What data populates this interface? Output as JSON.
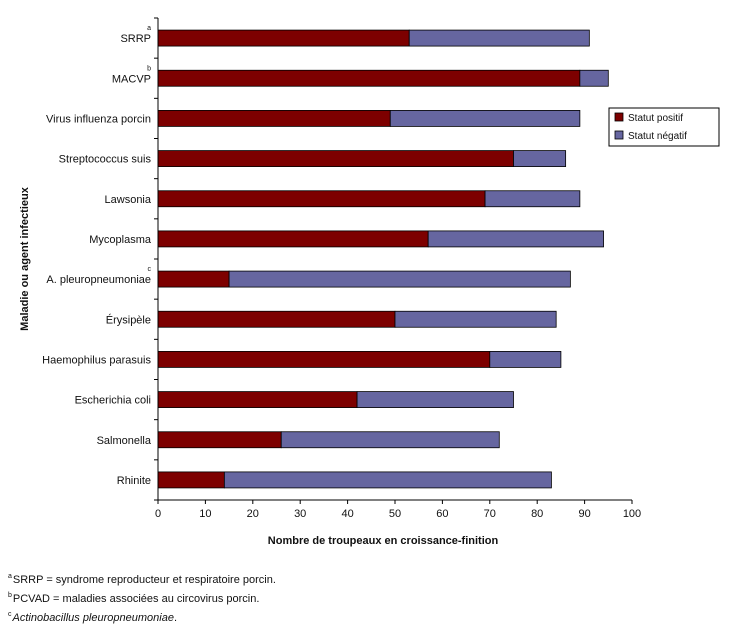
{
  "chart_data": {
    "type": "bar",
    "orientation": "horizontal",
    "stacked": true,
    "title": "",
    "xlabel": "Nombre de troupeaux en croissance-finition",
    "ylabel": "Maladie ou agent infectieux",
    "xlim": [
      0,
      100
    ],
    "xticks": [
      0,
      10,
      20,
      30,
      40,
      50,
      60,
      70,
      80,
      90,
      100
    ],
    "categories": [
      "SRRP",
      "MACVP",
      "Virus influenza porcin",
      "Streptococcus suis",
      "Lawsonia",
      "Mycoplasma",
      "A. pleuropneumoniae",
      "Érysipèle",
      "Haemophilus parasuis",
      "Escherichia coli",
      "Salmonella",
      "Rhinite"
    ],
    "category_superscripts": [
      "a",
      "b",
      "",
      "",
      "",
      "",
      "c",
      "",
      "",
      "",
      "",
      ""
    ],
    "series": [
      {
        "name": "Statut positif",
        "color": "#7d0000",
        "values": [
          53,
          89,
          49,
          75,
          69,
          57,
          15,
          50,
          70,
          42,
          26,
          14
        ]
      },
      {
        "name": "Statut négatif",
        "color": "#6666a0",
        "values": [
          38,
          6,
          40,
          11,
          20,
          37,
          72,
          34,
          15,
          33,
          46,
          69
        ]
      }
    ],
    "legend_position": "right",
    "grid": false
  },
  "footnotes": [
    {
      "marker": "a",
      "text": "SRRP = syndrome reproducteur et respiratoire porcin."
    },
    {
      "marker": "b",
      "text": "PCVAD = maladies associées au circovirus porcin."
    },
    {
      "marker": "c",
      "text": "Actinobacillus pleuropneumoniae",
      "suffix": "."
    }
  ]
}
